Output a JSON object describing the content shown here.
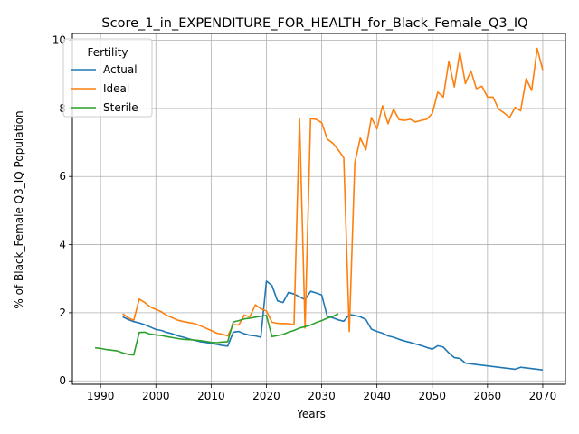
{
  "chart_data": {
    "type": "line",
    "title": "Score_1_in_EXPENDITURE_FOR_HEALTH_for_Black_Female_Q3_IQ",
    "xlabel": "Years",
    "ylabel": "% of Black_Female Q3_IQ Population",
    "xlim": [
      1984.9,
      2074.1
    ],
    "ylim": [
      -0.1,
      10.2
    ],
    "xticks": [
      1990,
      2000,
      2010,
      2020,
      2030,
      2040,
      2050,
      2060,
      2070
    ],
    "yticks": [
      0,
      2,
      4,
      6,
      8,
      10
    ],
    "grid": true,
    "legend": {
      "title": "Fertility",
      "position": "top-left"
    },
    "series": [
      {
        "name": "Actual",
        "color": "#1f77b4",
        "points": [
          [
            1994,
            1.88
          ],
          [
            1995,
            1.8
          ],
          [
            1996,
            1.74
          ],
          [
            1997,
            1.7
          ],
          [
            1998,
            1.65
          ],
          [
            1999,
            1.58
          ],
          [
            2000,
            1.51
          ],
          [
            2001,
            1.48
          ],
          [
            2002,
            1.42
          ],
          [
            2003,
            1.38
          ],
          [
            2004,
            1.32
          ],
          [
            2005,
            1.28
          ],
          [
            2006,
            1.23
          ],
          [
            2007,
            1.19
          ],
          [
            2008,
            1.15
          ],
          [
            2009,
            1.13
          ],
          [
            2010,
            1.1
          ],
          [
            2011,
            1.07
          ],
          [
            2012,
            1.04
          ],
          [
            2013,
            1.02
          ],
          [
            2014,
            1.43
          ],
          [
            2015,
            1.45
          ],
          [
            2016,
            1.38
          ],
          [
            2017,
            1.34
          ],
          [
            2018,
            1.32
          ],
          [
            2019,
            1.28
          ],
          [
            2020,
            2.93
          ],
          [
            2021,
            2.8
          ],
          [
            2022,
            2.35
          ],
          [
            2023,
            2.3
          ],
          [
            2024,
            2.6
          ],
          [
            2025,
            2.55
          ],
          [
            2026,
            2.47
          ],
          [
            2027,
            2.38
          ],
          [
            2028,
            2.63
          ],
          [
            2029,
            2.58
          ],
          [
            2030,
            2.52
          ],
          [
            2031,
            1.9
          ],
          [
            2032,
            1.85
          ],
          [
            2033,
            1.79
          ],
          [
            2034,
            1.75
          ],
          [
            2035,
            1.95
          ],
          [
            2036,
            1.92
          ],
          [
            2037,
            1.88
          ],
          [
            2038,
            1.8
          ],
          [
            2039,
            1.52
          ],
          [
            2040,
            1.45
          ],
          [
            2041,
            1.4
          ],
          [
            2042,
            1.32
          ],
          [
            2043,
            1.28
          ],
          [
            2044,
            1.22
          ],
          [
            2045,
            1.17
          ],
          [
            2046,
            1.13
          ],
          [
            2047,
            1.08
          ],
          [
            2048,
            1.04
          ],
          [
            2049,
            0.98
          ],
          [
            2050,
            0.93
          ],
          [
            2051,
            1.03
          ],
          [
            2052,
            0.99
          ],
          [
            2053,
            0.82
          ],
          [
            2054,
            0.68
          ],
          [
            2055,
            0.66
          ],
          [
            2056,
            0.52
          ],
          [
            2057,
            0.5
          ],
          [
            2058,
            0.48
          ],
          [
            2059,
            0.46
          ],
          [
            2060,
            0.44
          ],
          [
            2061,
            0.42
          ],
          [
            2062,
            0.4
          ],
          [
            2063,
            0.38
          ],
          [
            2064,
            0.36
          ],
          [
            2065,
            0.34
          ],
          [
            2066,
            0.4
          ],
          [
            2067,
            0.38
          ],
          [
            2068,
            0.36
          ],
          [
            2069,
            0.34
          ],
          [
            2070,
            0.32
          ]
        ]
      },
      {
        "name": "Ideal",
        "color": "#ff7f0e",
        "points": [
          [
            1994,
            1.97
          ],
          [
            1995,
            1.85
          ],
          [
            1996,
            1.78
          ],
          [
            1997,
            2.4
          ],
          [
            1998,
            2.3
          ],
          [
            1999,
            2.17
          ],
          [
            2000,
            2.1
          ],
          [
            2001,
            2.03
          ],
          [
            2002,
            1.92
          ],
          [
            2003,
            1.85
          ],
          [
            2004,
            1.78
          ],
          [
            2005,
            1.74
          ],
          [
            2006,
            1.71
          ],
          [
            2007,
            1.68
          ],
          [
            2008,
            1.62
          ],
          [
            2009,
            1.55
          ],
          [
            2010,
            1.48
          ],
          [
            2011,
            1.4
          ],
          [
            2012,
            1.37
          ],
          [
            2013,
            1.32
          ],
          [
            2014,
            1.65
          ],
          [
            2015,
            1.64
          ],
          [
            2016,
            1.93
          ],
          [
            2017,
            1.88
          ],
          [
            2018,
            2.23
          ],
          [
            2019,
            2.12
          ],
          [
            2020,
            2.05
          ],
          [
            2021,
            1.72
          ],
          [
            2022,
            1.69
          ],
          [
            2023,
            1.68
          ],
          [
            2024,
            1.68
          ],
          [
            2025,
            1.65
          ],
          [
            2026,
            7.7
          ],
          [
            2027,
            1.55
          ],
          [
            2028,
            7.7
          ],
          [
            2029,
            7.68
          ],
          [
            2030,
            7.58
          ],
          [
            2031,
            7.1
          ],
          [
            2032,
            6.98
          ],
          [
            2033,
            6.78
          ],
          [
            2034,
            6.55
          ],
          [
            2035,
            1.45
          ],
          [
            2036,
            6.4
          ],
          [
            2037,
            7.13
          ],
          [
            2038,
            6.78
          ],
          [
            2039,
            7.73
          ],
          [
            2040,
            7.4
          ],
          [
            2041,
            8.08
          ],
          [
            2042,
            7.55
          ],
          [
            2043,
            7.98
          ],
          [
            2044,
            7.67
          ],
          [
            2045,
            7.65
          ],
          [
            2046,
            7.68
          ],
          [
            2047,
            7.6
          ],
          [
            2048,
            7.65
          ],
          [
            2049,
            7.68
          ],
          [
            2050,
            7.85
          ],
          [
            2051,
            8.48
          ],
          [
            2052,
            8.33
          ],
          [
            2053,
            9.38
          ],
          [
            2054,
            8.63
          ],
          [
            2055,
            9.65
          ],
          [
            2056,
            8.73
          ],
          [
            2057,
            9.1
          ],
          [
            2058,
            8.58
          ],
          [
            2059,
            8.65
          ],
          [
            2060,
            8.33
          ],
          [
            2061,
            8.33
          ],
          [
            2062,
            7.98
          ],
          [
            2063,
            7.87
          ],
          [
            2064,
            7.73
          ],
          [
            2065,
            8.03
          ],
          [
            2066,
            7.93
          ],
          [
            2067,
            8.87
          ],
          [
            2068,
            8.53
          ],
          [
            2069,
            9.76
          ],
          [
            2070,
            9.13
          ]
        ]
      },
      {
        "name": "Sterile",
        "color": "#2ca02c",
        "points": [
          [
            1989,
            0.97
          ],
          [
            1990,
            0.95
          ],
          [
            1991,
            0.92
          ],
          [
            1992,
            0.9
          ],
          [
            1993,
            0.88
          ],
          [
            1994,
            0.82
          ],
          [
            1995,
            0.78
          ],
          [
            1996,
            0.76
          ],
          [
            1997,
            1.42
          ],
          [
            1998,
            1.43
          ],
          [
            1999,
            1.37
          ],
          [
            2000,
            1.35
          ],
          [
            2001,
            1.33
          ],
          [
            2002,
            1.3
          ],
          [
            2003,
            1.27
          ],
          [
            2004,
            1.24
          ],
          [
            2005,
            1.22
          ],
          [
            2006,
            1.21
          ],
          [
            2007,
            1.2
          ],
          [
            2008,
            1.18
          ],
          [
            2009,
            1.16
          ],
          [
            2010,
            1.13
          ],
          [
            2011,
            1.12
          ],
          [
            2012,
            1.14
          ],
          [
            2013,
            1.15
          ],
          [
            2014,
            1.73
          ],
          [
            2015,
            1.77
          ],
          [
            2016,
            1.82
          ],
          [
            2017,
            1.84
          ],
          [
            2018,
            1.87
          ],
          [
            2019,
            1.9
          ],
          [
            2020,
            1.92
          ],
          [
            2021,
            1.3
          ],
          [
            2022,
            1.33
          ],
          [
            2023,
            1.36
          ],
          [
            2024,
            1.43
          ],
          [
            2025,
            1.48
          ],
          [
            2026,
            1.55
          ],
          [
            2027,
            1.59
          ],
          [
            2028,
            1.64
          ],
          [
            2029,
            1.71
          ],
          [
            2030,
            1.77
          ],
          [
            2031,
            1.84
          ],
          [
            2032,
            1.89
          ],
          [
            2033,
            1.97
          ]
        ]
      }
    ]
  }
}
